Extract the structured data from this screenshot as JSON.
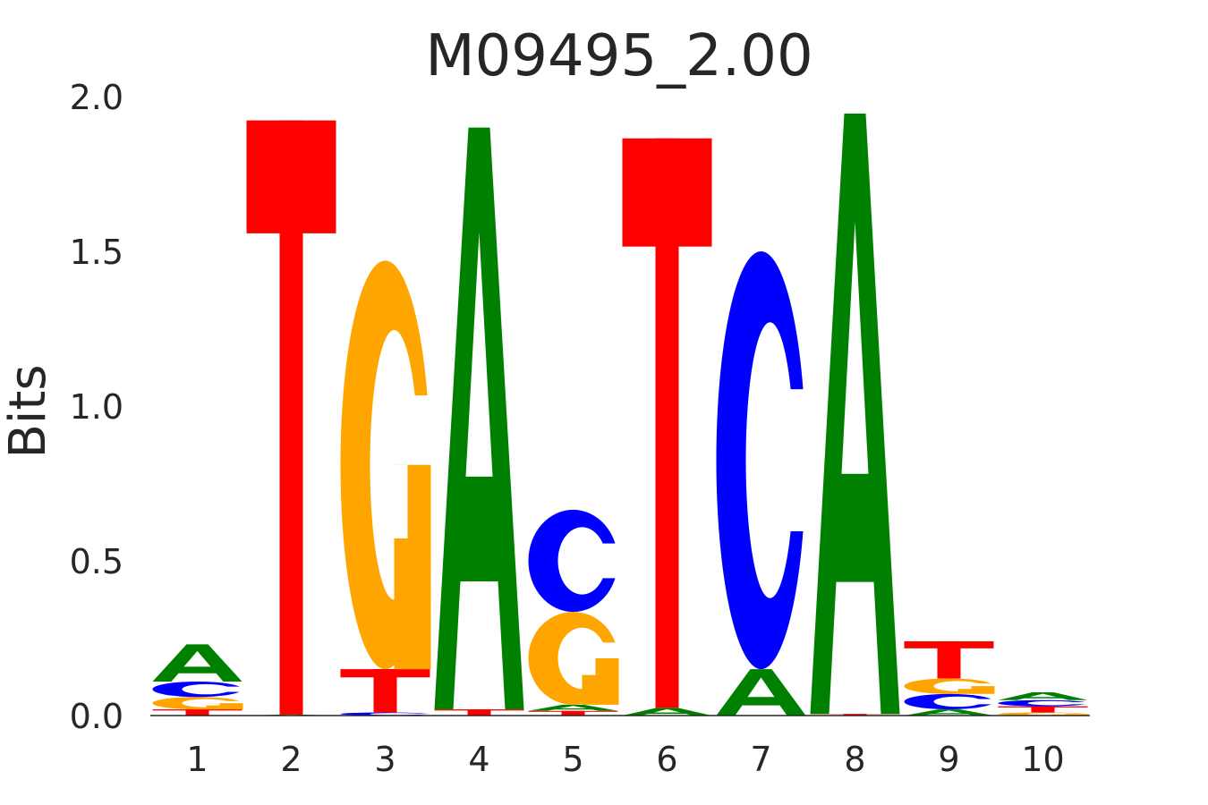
{
  "chart_data": {
    "type": "sequence-logo",
    "title": "M09495_2.00",
    "xlabel": "",
    "ylabel": "Bits",
    "ylim": [
      0,
      2.0
    ],
    "yticks": [
      "0.0",
      "0.5",
      "1.0",
      "1.5",
      "2.0"
    ],
    "xticks": [
      "1",
      "2",
      "3",
      "4",
      "5",
      "6",
      "7",
      "8",
      "9",
      "10"
    ],
    "colors": {
      "A": "#008000",
      "C": "#0000ff",
      "G": "#ffa500",
      "T": "#ff0000"
    },
    "positions": [
      {
        "pos": "1",
        "stack": [
          {
            "base": "T",
            "bits": 0.02
          },
          {
            "base": "G",
            "bits": 0.04
          },
          {
            "base": "C",
            "bits": 0.05
          },
          {
            "base": "A",
            "bits": 0.12
          }
        ]
      },
      {
        "pos": "2",
        "stack": [
          {
            "base": "A",
            "bits": 0.003
          },
          {
            "base": "T",
            "bits": 1.92
          }
        ]
      },
      {
        "pos": "3",
        "stack": [
          {
            "base": "C",
            "bits": 0.01
          },
          {
            "base": "T",
            "bits": 0.14
          },
          {
            "base": "G",
            "bits": 1.32
          }
        ]
      },
      {
        "pos": "4",
        "stack": [
          {
            "base": "T",
            "bits": 0.02
          },
          {
            "base": "A",
            "bits": 1.88
          }
        ]
      },
      {
        "pos": "5",
        "stack": [
          {
            "base": "T",
            "bits": 0.015
          },
          {
            "base": "A",
            "bits": 0.02
          },
          {
            "base": "G",
            "bits": 0.3
          },
          {
            "base": "C",
            "bits": 0.33
          }
        ]
      },
      {
        "pos": "6",
        "stack": [
          {
            "base": "A",
            "bits": 0.025
          },
          {
            "base": "T",
            "bits": 1.84
          }
        ]
      },
      {
        "pos": "7",
        "stack": [
          {
            "base": "A",
            "bits": 0.15
          },
          {
            "base": "C",
            "bits": 1.35
          }
        ]
      },
      {
        "pos": "8",
        "stack": [
          {
            "base": "T",
            "bits": 0.005
          },
          {
            "base": "A",
            "bits": 1.94
          }
        ]
      },
      {
        "pos": "9",
        "stack": [
          {
            "base": "A",
            "bits": 0.02
          },
          {
            "base": "C",
            "bits": 0.05
          },
          {
            "base": "G",
            "bits": 0.05
          },
          {
            "base": "T",
            "bits": 0.12
          }
        ]
      },
      {
        "pos": "10",
        "stack": [
          {
            "base": "G",
            "bits": 0.01
          },
          {
            "base": "T",
            "bits": 0.02
          },
          {
            "base": "C",
            "bits": 0.02
          },
          {
            "base": "A",
            "bits": 0.025
          }
        ]
      }
    ]
  }
}
